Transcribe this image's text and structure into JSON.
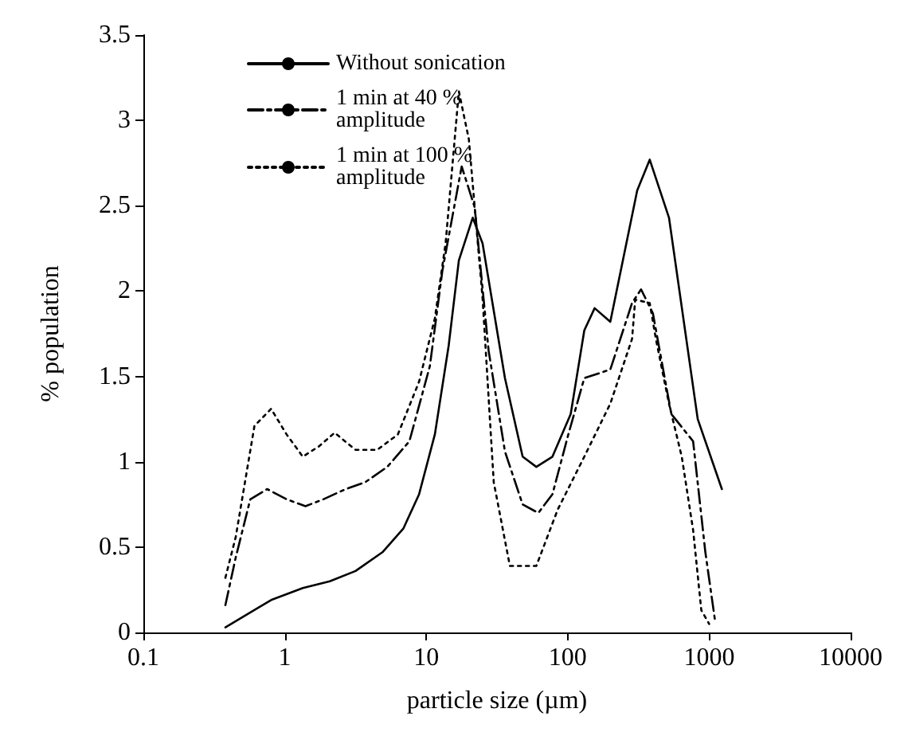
{
  "chart_data": {
    "type": "line",
    "xlabel": "particle size (µm)",
    "ylabel": "% population",
    "log": "x",
    "xlim": [
      0.1,
      10000
    ],
    "xticks": [
      0.1,
      1,
      10,
      100,
      1000,
      10000
    ],
    "ylim": [
      0,
      3.5
    ],
    "yticks": [
      0,
      0.5,
      1,
      1.5,
      2,
      2.5,
      3,
      3.5
    ],
    "grid": false,
    "legend": "top left",
    "marker": "none",
    "series": [
      {
        "name": "Without sonication",
        "color": "#000000",
        "line_style": "solid",
        "x": [
          0.38,
          0.8,
          1.34,
          2.08,
          3.16,
          4.9,
          6.9,
          8.9,
          11.5,
          14.4,
          17,
          21.3,
          25,
          36,
          48,
          60,
          78,
          105,
          131,
          155,
          200,
          310,
          380,
          520,
          830,
          1230
        ],
        "values": [
          0.03,
          0.19,
          0.26,
          0.3,
          0.36,
          0.47,
          0.61,
          0.81,
          1.16,
          1.68,
          2.18,
          2.43,
          2.28,
          1.49,
          1.03,
          0.97,
          1.03,
          1.28,
          1.77,
          1.9,
          1.82,
          2.59,
          2.77,
          2.43,
          1.25,
          0.84
        ]
      },
      {
        "name": "1 min at 40 % amplitude",
        "color": "#000000",
        "line_style": "dashdot",
        "x": [
          0.38,
          0.45,
          0.57,
          0.75,
          1.03,
          1.4,
          1.87,
          2.7,
          3.7,
          5.3,
          7.6,
          10.6,
          13,
          17.8,
          22,
          27.6,
          36,
          48,
          62,
          78,
          101,
          131,
          200,
          285,
          330,
          400,
          540,
          770,
          940,
          1100
        ],
        "values": [
          0.16,
          0.44,
          0.78,
          0.84,
          0.78,
          0.74,
          0.78,
          0.84,
          0.88,
          0.97,
          1.12,
          1.56,
          2.12,
          2.73,
          2.49,
          1.65,
          1.06,
          0.75,
          0.7,
          0.81,
          1.16,
          1.49,
          1.54,
          1.93,
          2.01,
          1.87,
          1.28,
          1.12,
          0.47,
          0.07
        ]
      },
      {
        "name": "1 min at 100 % amplitude",
        "color": "#000000",
        "line_style": "dotted",
        "x": [
          0.38,
          0.45,
          0.61,
          0.8,
          1.03,
          1.34,
          1.74,
          2.25,
          3.16,
          4.5,
          6.3,
          8.9,
          11.5,
          13.7,
          17,
          20,
          25,
          30,
          39,
          60,
          85,
          131,
          200,
          285,
          300,
          380,
          420,
          520,
          640,
          770,
          880,
          1000
        ],
        "values": [
          0.32,
          0.56,
          1.21,
          1.31,
          1.16,
          1.03,
          1.09,
          1.17,
          1.07,
          1.07,
          1.16,
          1.47,
          1.84,
          2.28,
          3.17,
          2.89,
          1.96,
          0.88,
          0.39,
          0.39,
          0.72,
          1.03,
          1.34,
          1.72,
          1.95,
          1.93,
          1.72,
          1.34,
          1.03,
          0.6,
          0.13,
          0.05
        ]
      }
    ]
  }
}
